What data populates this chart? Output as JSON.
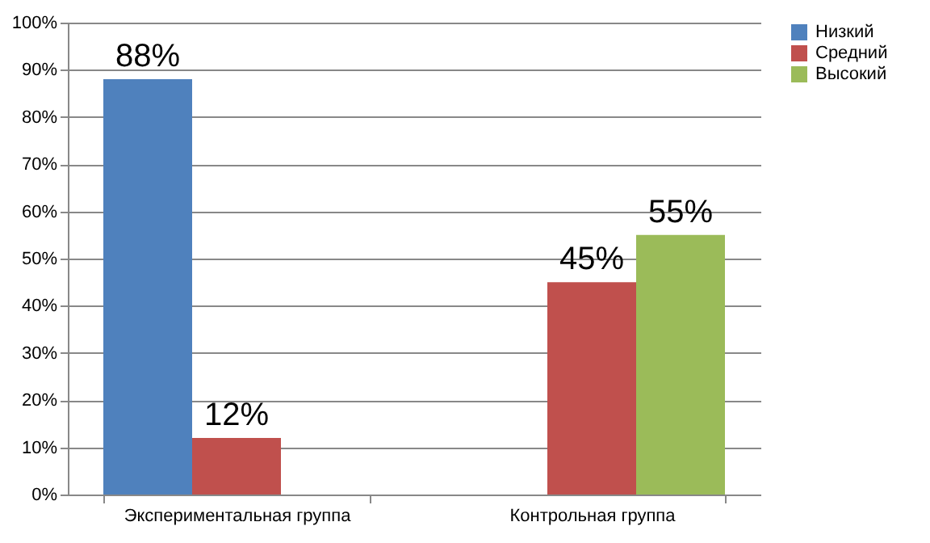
{
  "chart_data": {
    "type": "bar",
    "categories": [
      "Экспериментальная группа",
      "Контрольная группа"
    ],
    "series": [
      {
        "name": "Низкий",
        "color": "#4f81bd",
        "values": [
          88,
          null
        ],
        "value_labels": [
          "88%",
          null
        ]
      },
      {
        "name": "Средний",
        "color": "#c0504d",
        "values": [
          12,
          45
        ],
        "value_labels": [
          "12%",
          "45%"
        ]
      },
      {
        "name": "Высокий",
        "color": "#9bbb59",
        "values": [
          null,
          55
        ],
        "value_labels": [
          null,
          "55%"
        ]
      }
    ],
    "ylim": [
      0,
      100
    ],
    "yticks": [
      {
        "value": 0,
        "label": "0%"
      },
      {
        "value": 10,
        "label": "10%"
      },
      {
        "value": 20,
        "label": "20%"
      },
      {
        "value": 30,
        "label": "30%"
      },
      {
        "value": 40,
        "label": "40%"
      },
      {
        "value": 50,
        "label": "50%"
      },
      {
        "value": 60,
        "label": "60%"
      },
      {
        "value": 70,
        "label": "70%"
      },
      {
        "value": 80,
        "label": "80%"
      },
      {
        "value": 90,
        "label": "90%"
      },
      {
        "value": 100,
        "label": "100%"
      }
    ],
    "grid": "y",
    "legend": "right"
  }
}
